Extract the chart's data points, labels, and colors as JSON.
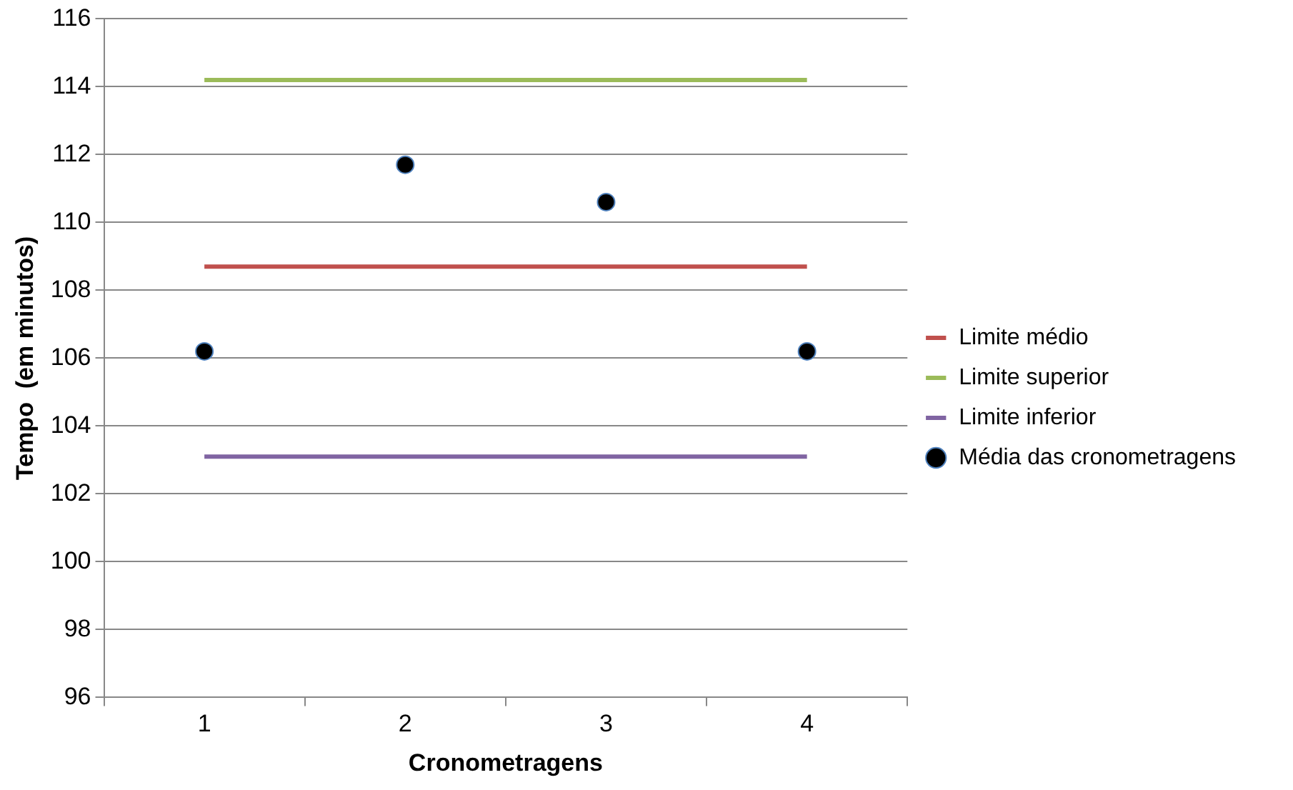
{
  "chart_data": {
    "type": "line",
    "xlabel": "Cronometragens",
    "ylabel": "Tempo  (em minutos)",
    "categories": [
      "1",
      "2",
      "3",
      "4"
    ],
    "series": [
      {
        "name": "Limite médio",
        "color": "#c0504d",
        "values": [
          108.7,
          108.7,
          108.7,
          108.7
        ],
        "marker": "none"
      },
      {
        "name": "Limite superior",
        "color": "#9bbb59",
        "values": [
          114.2,
          114.2,
          114.2,
          114.2
        ],
        "marker": "none"
      },
      {
        "name": "Limite inferior",
        "color": "#8064a2",
        "values": [
          103.1,
          103.1,
          103.1,
          103.1
        ],
        "marker": "none"
      },
      {
        "name": "Média das cronometragens",
        "type": "scatter",
        "color": "#000000",
        "values": [
          106.2,
          111.7,
          110.6,
          106.2
        ],
        "marker": "circle"
      }
    ],
    "ylim": [
      96,
      116
    ],
    "yticks": [
      96,
      98,
      100,
      102,
      104,
      106,
      108,
      110,
      112,
      114,
      116
    ],
    "grid": "y",
    "legend": "right"
  }
}
